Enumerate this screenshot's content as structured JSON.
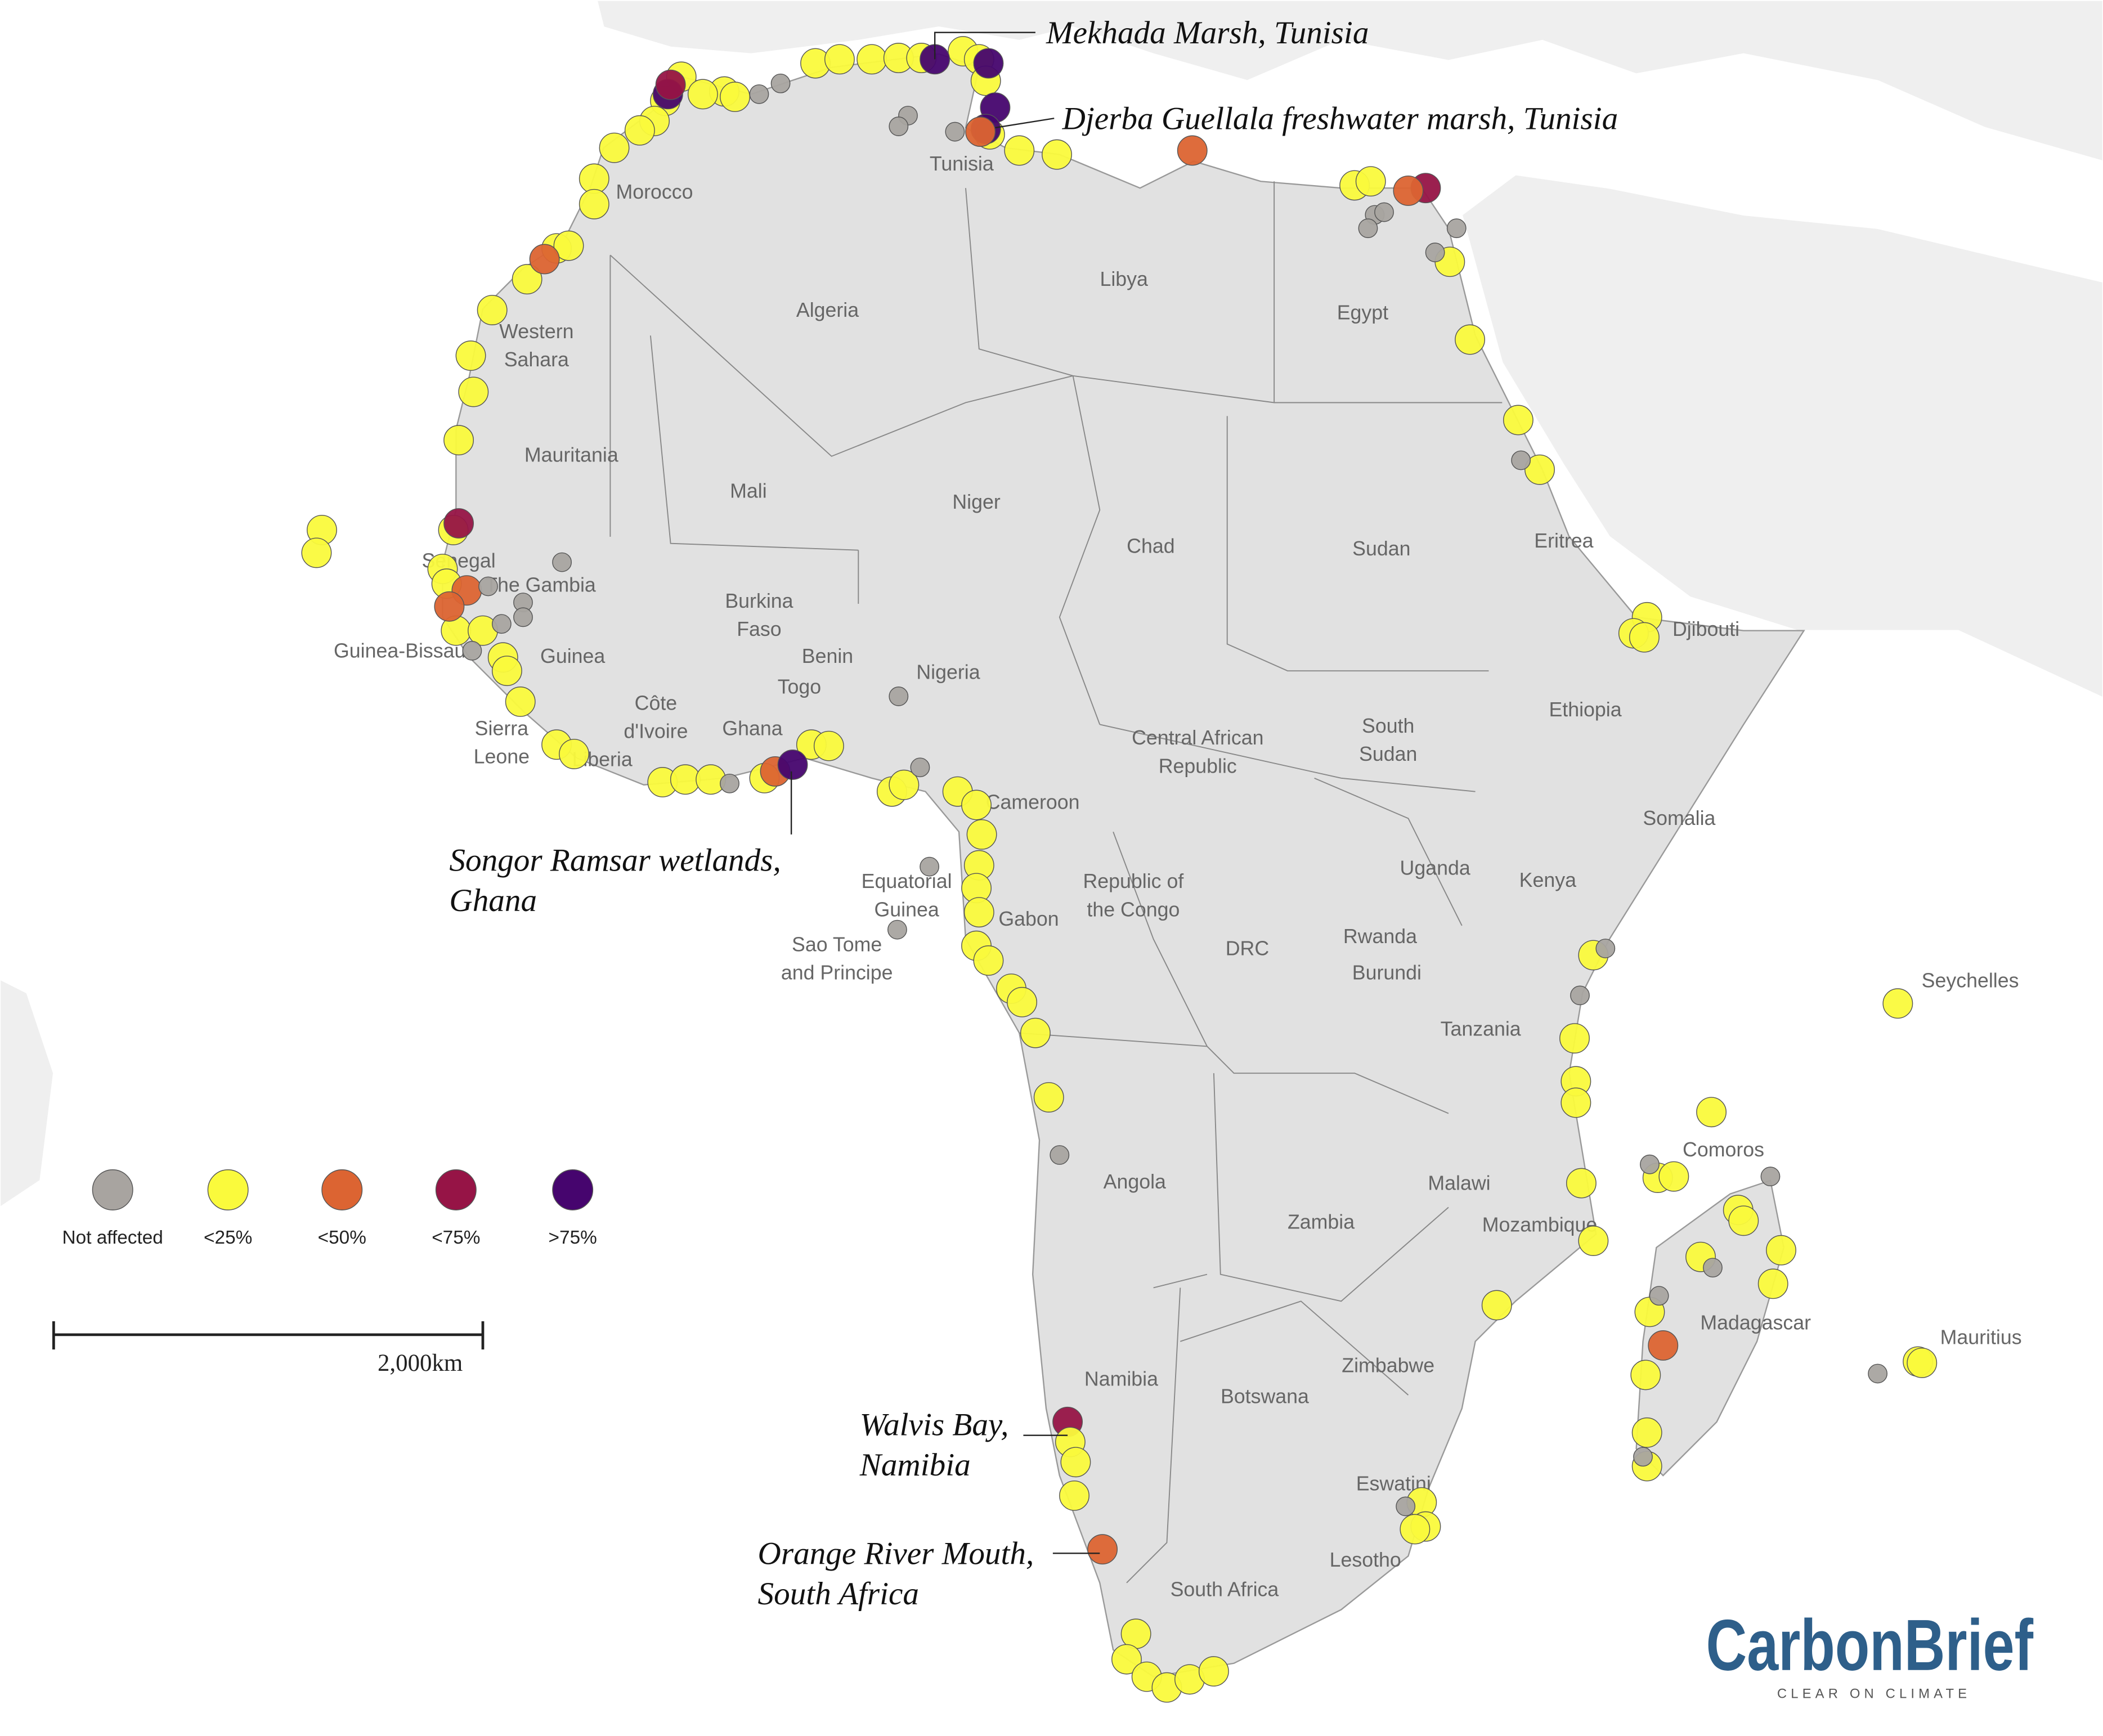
{
  "countries": [
    [
      "Morocco"
    ],
    [
      "Tunisia"
    ],
    [
      "Algeria"
    ],
    [
      "Libya"
    ],
    [
      "Egypt"
    ],
    [
      "Western",
      "Sahara"
    ],
    [
      "Mauritania"
    ],
    [
      "Mali"
    ],
    [
      "Niger"
    ],
    [
      "Chad"
    ],
    [
      "Sudan"
    ],
    [
      "Eritrea"
    ],
    [
      "Djibouti"
    ],
    [
      "Senegal"
    ],
    [
      "The Gambia"
    ],
    [
      "Guinea-Bissau"
    ],
    [
      "Guinea"
    ],
    [
      "Burkina",
      "Faso"
    ],
    [
      "Benin"
    ],
    [
      "Togo"
    ],
    [
      "Nigeria"
    ],
    [
      "Ethiopia"
    ],
    [
      "Sierra",
      "Leone"
    ],
    [
      "Côte",
      "d'Ivoire"
    ],
    [
      "Ghana"
    ],
    [
      "Liberia"
    ],
    [
      "Central African",
      "Republic"
    ],
    [
      "South",
      "Sudan"
    ],
    [
      "Cameroon"
    ],
    [
      "Somalia"
    ],
    [
      "Equatorial",
      "Guinea"
    ],
    [
      "Uganda"
    ],
    [
      "Kenya"
    ],
    [
      "Republic of",
      "the Congo"
    ],
    [
      "Gabon"
    ],
    [
      "Sao Tome",
      "and Principe"
    ],
    [
      "DRC"
    ],
    [
      "Rwanda"
    ],
    [
      "Burundi"
    ],
    [
      "Tanzania"
    ],
    [
      "Seychelles"
    ],
    [
      "Angola"
    ],
    [
      "Comoros"
    ],
    [
      "Malawi"
    ],
    [
      "Zambia"
    ],
    [
      "Mozambique"
    ],
    [
      "Madagascar"
    ],
    [
      "Mauritius"
    ],
    [
      "Namibia"
    ],
    [
      "Zimbabwe"
    ],
    [
      "Botswana"
    ],
    [
      "Eswatini"
    ],
    [
      "Lesotho"
    ],
    [
      "South Africa"
    ]
  ],
  "annotations": [
    [
      "Mekhada Marsh, Tunisia"
    ],
    [
      "Djerba Guellala freshwater marsh, Tunisia"
    ],
    [
      "Songor Ramsar wetlands,",
      "Ghana"
    ],
    [
      "Walvis Bay,",
      "Namibia"
    ],
    [
      "Orange River Mouth,",
      "South Africa"
    ]
  ],
  "legend": {
    "items": [
      {
        "label": "Not affected",
        "color": "#a8a4a0"
      },
      {
        "label": "<25%",
        "color": "#fafa3c"
      },
      {
        "label": "<50%",
        "color": "#dc6432"
      },
      {
        "label": "<75%",
        "color": "#961446"
      },
      {
        "label": ">75%",
        "color": "#46056e"
      }
    ]
  },
  "scale_bar": {
    "label": "2,000km"
  },
  "logo": {
    "name": "CarbonBrief",
    "tagline": "CLEAR ON CLIMATE"
  }
}
